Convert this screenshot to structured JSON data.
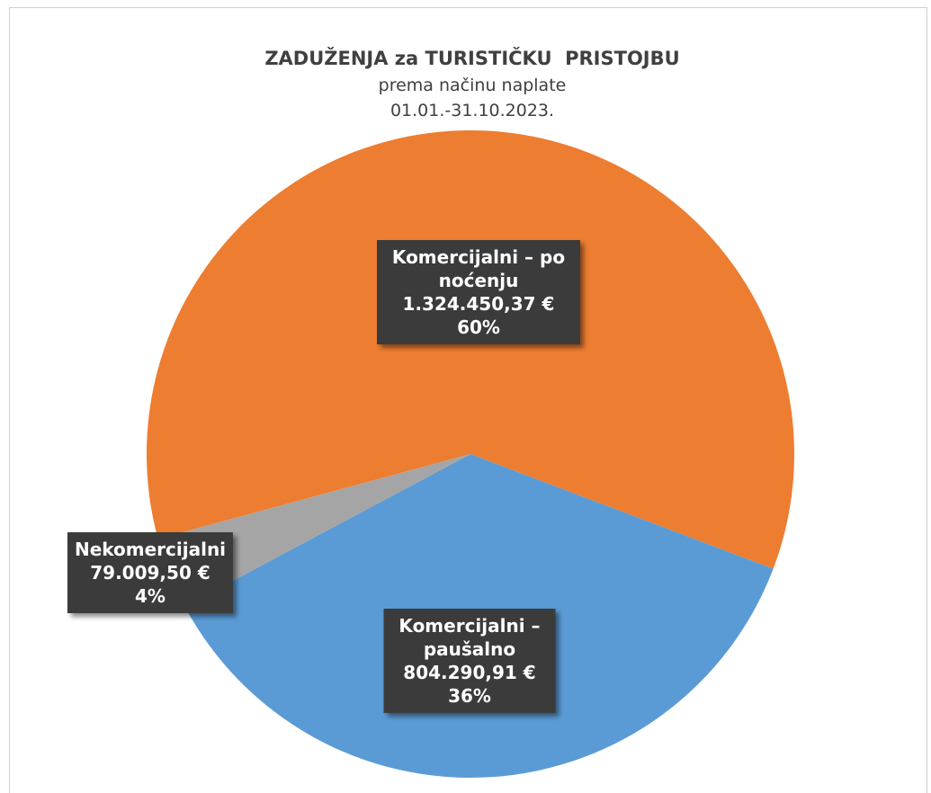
{
  "chart_data": {
    "type": "pie",
    "title": "ZADUŽENJA za TURISTIČKU  PRISTOJBU",
    "subtitle": "prema načinu naplate",
    "subtitle2": "01.01.-31.10.2023.",
    "categories": [
      "Komercijalni – po noćenju",
      "Komercijalni – paušalno",
      "Nekomercijalni"
    ],
    "values": [
      1324450.37,
      804290.91,
      79009.5
    ],
    "value_labels": [
      "1.324.450,37 €",
      "804.290,91 €",
      "79.009,50 €"
    ],
    "percent_labels": [
      "60%",
      "36%",
      "4%"
    ],
    "colors": [
      "#ed7d31",
      "#5b9bd5",
      "#a5a5a5"
    ]
  }
}
